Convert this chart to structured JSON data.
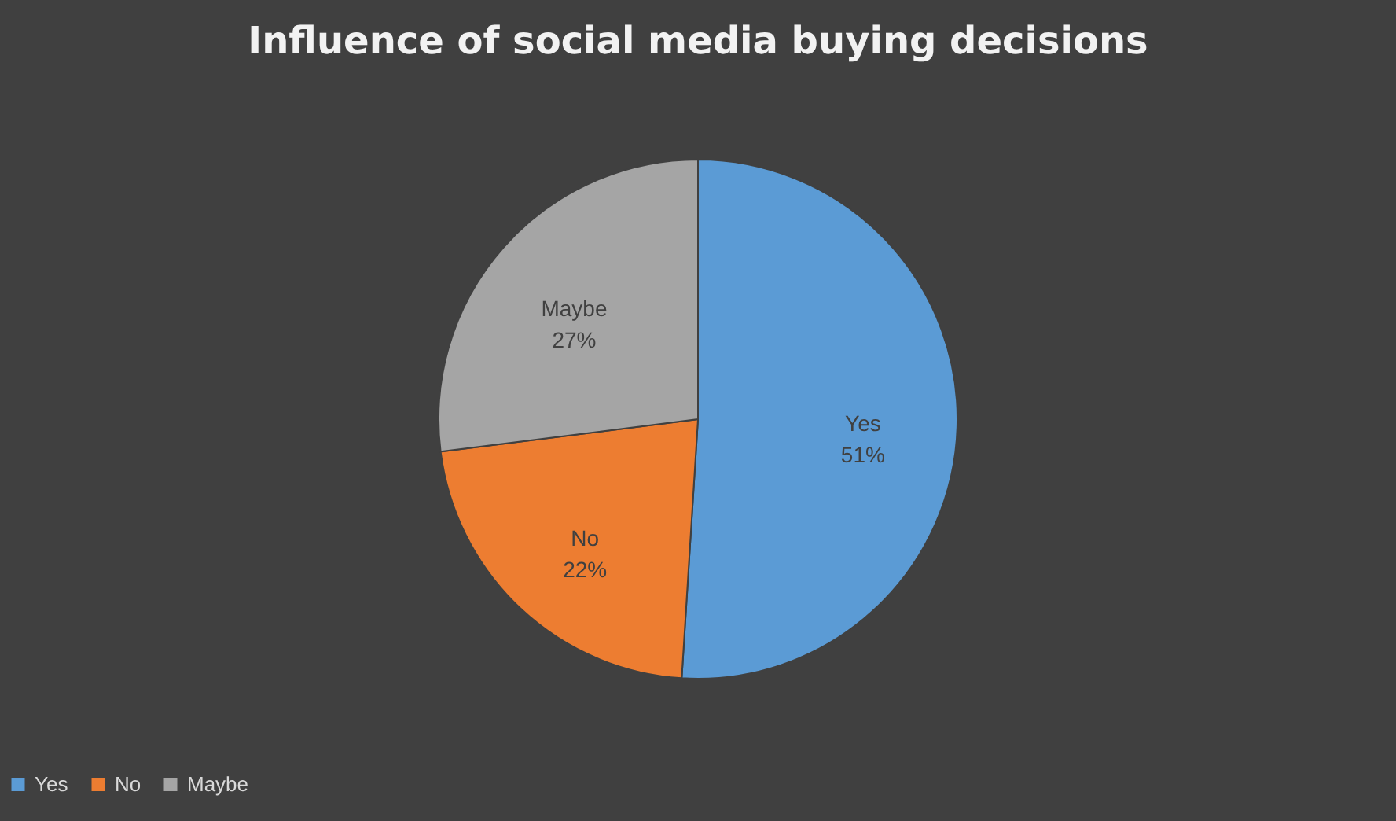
{
  "chart_data": {
    "type": "pie",
    "title": "Influence of social media buying decisions",
    "categories": [
      "Yes",
      "No",
      "Maybe"
    ],
    "values": [
      51,
      22,
      27
    ],
    "value_labels": [
      "51%",
      "22%",
      "27%"
    ],
    "colors": [
      "#5b9bd5",
      "#ed7d31",
      "#a5a5a5"
    ],
    "legend": "bottom"
  }
}
